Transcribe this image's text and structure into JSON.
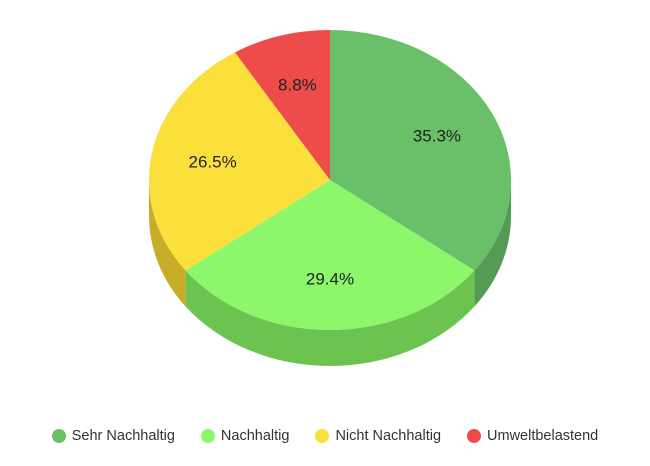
{
  "chart_data": {
    "type": "pie",
    "categories": [
      "Sehr Nachhaltig",
      "Nachhaltig",
      "Nicht Nachhaltig",
      "Umweltbelastend"
    ],
    "values": [
      35.3,
      29.4,
      26.5,
      8.8
    ],
    "labels": [
      "35.3%",
      "29.4%",
      "26.5%",
      "8.8%"
    ],
    "colors": [
      "#6abf69",
      "#8cf76a",
      "#fbe03c",
      "#ee4b4b"
    ],
    "side_colors": [
      "#569b55",
      "#6cc34f",
      "#c8ad28",
      "#bf3a3a"
    ],
    "legend_position": "bottom",
    "style": "3d"
  }
}
